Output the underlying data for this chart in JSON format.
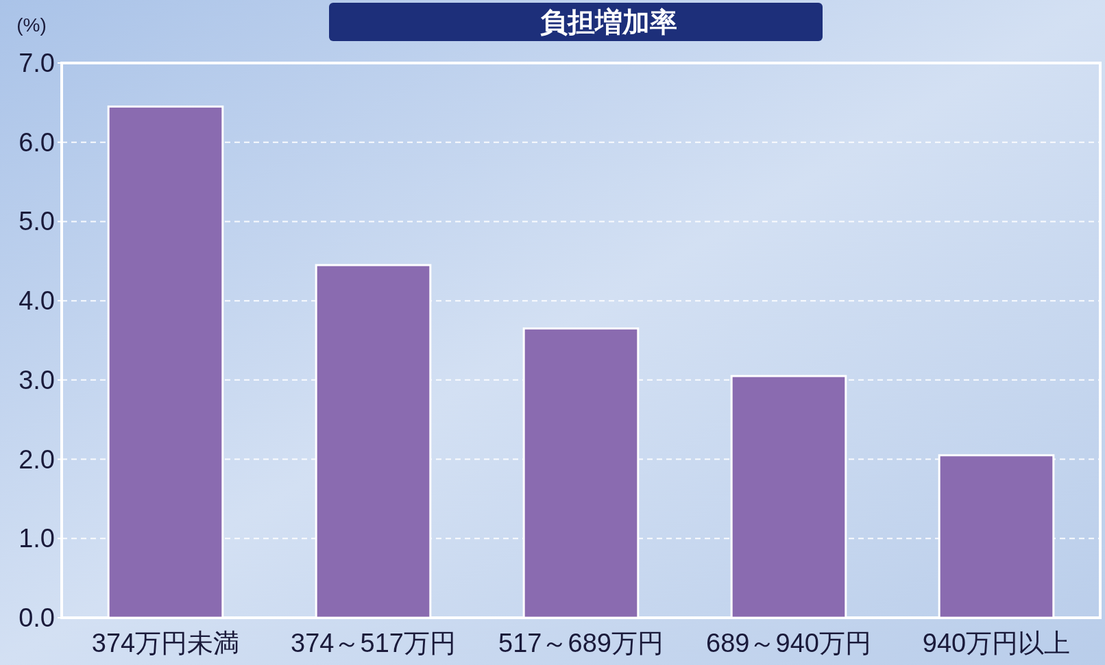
{
  "chart_data": {
    "type": "bar",
    "title": "負担増加率",
    "ylabel": "(%)",
    "categories": [
      "374万円未満",
      "374～517万円",
      "517～689万円",
      "689～940万円",
      "940万円以上"
    ],
    "values": [
      6.45,
      4.45,
      3.65,
      3.05,
      2.05
    ],
    "color": "#8a6bb0",
    "ylim": [
      0,
      7
    ],
    "yticks": [
      {
        "value": 0,
        "label": "0.0"
      },
      {
        "value": 1,
        "label": "1.0"
      },
      {
        "value": 2,
        "label": "2.0"
      },
      {
        "value": 3,
        "label": "3.0"
      },
      {
        "value": 4,
        "label": "4.0"
      },
      {
        "value": 5,
        "label": "5.0"
      },
      {
        "value": 6,
        "label": "6.0"
      },
      {
        "value": 7,
        "label": "7.0"
      }
    ],
    "grid": "y"
  }
}
